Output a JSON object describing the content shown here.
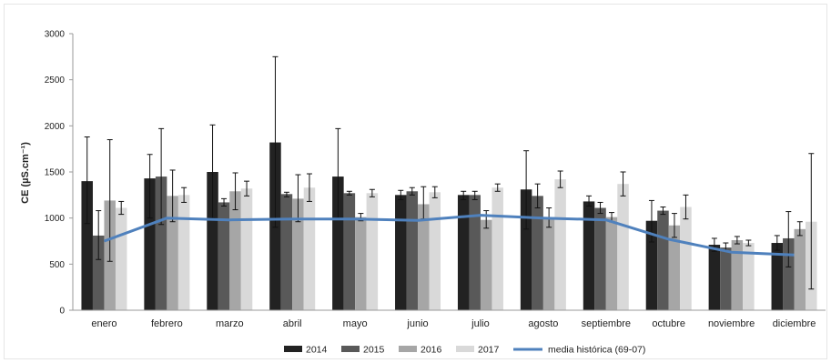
{
  "chart_data": {
    "type": "bar",
    "ylabel": "CE (µS.cm⁻¹)",
    "ylim": [
      0,
      3000
    ],
    "yticks": [
      0,
      500,
      1000,
      1500,
      2000,
      2500,
      3000
    ],
    "categories": [
      "enero",
      "febrero",
      "marzo",
      "abril",
      "mayo",
      "junio",
      "julio",
      "agosto",
      "septiembre",
      "octubre",
      "noviembre",
      "diciembre"
    ],
    "series": [
      {
        "name": "2014",
        "color": "#222222",
        "values": [
          1400,
          1430,
          1500,
          1820,
          1450,
          1250,
          1250,
          1310,
          1180,
          970,
          710,
          730
        ],
        "err_low": [
          940,
          1000,
          1000,
          900,
          1000,
          1200,
          1200,
          880,
          1130,
          740,
          640,
          650
        ],
        "err_high": [
          1880,
          1690,
          2010,
          2750,
          1970,
          1300,
          1290,
          1730,
          1240,
          1190,
          780,
          810
        ]
      },
      {
        "name": "2015",
        "color": "#595959",
        "values": [
          810,
          1450,
          1170,
          1260,
          1270,
          1290,
          1250,
          1240,
          1110,
          1080,
          680,
          780
        ],
        "err_low": [
          550,
          930,
          1130,
          1230,
          1250,
          1250,
          1200,
          1110,
          1050,
          1040,
          640,
          470
        ],
        "err_high": [
          1080,
          1970,
          1210,
          1280,
          1290,
          1330,
          1290,
          1370,
          1170,
          1120,
          730,
          1070
        ]
      },
      {
        "name": "2016",
        "color": "#a6a6a6",
        "values": [
          1190,
          1240,
          1290,
          1210,
          1010,
          1150,
          980,
          1010,
          1010,
          920,
          760,
          880
        ],
        "err_low": [
          530,
          960,
          1090,
          960,
          970,
          990,
          890,
          900,
          960,
          790,
          720,
          810
        ],
        "err_high": [
          1850,
          1520,
          1490,
          1470,
          1050,
          1340,
          1080,
          1110,
          1060,
          1050,
          800,
          960
        ]
      },
      {
        "name": "2017",
        "color": "#d9d9d9",
        "values": [
          1110,
          1250,
          1320,
          1330,
          1270,
          1280,
          1330,
          1420,
          1370,
          1120,
          730,
          960
        ],
        "err_low": [
          1040,
          1170,
          1240,
          1180,
          1230,
          1220,
          1290,
          1330,
          1240,
          990,
          700,
          230
        ],
        "err_high": [
          1180,
          1330,
          1400,
          1480,
          1310,
          1340,
          1370,
          1510,
          1500,
          1250,
          760,
          1700
        ]
      }
    ],
    "line_series": {
      "name": "media histórica (69-07)",
      "color": "#4f81bd",
      "values": [
        750,
        1000,
        980,
        990,
        990,
        975,
        1030,
        1000,
        980,
        770,
        630,
        600
      ]
    },
    "grid": false,
    "legend_position": "bottom"
  }
}
